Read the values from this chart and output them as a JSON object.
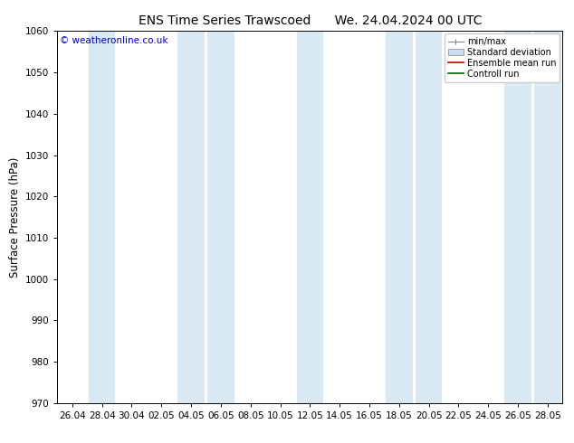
{
  "title": "ENS Time Series Trawscoed",
  "title2": "We. 24.04.2024 00 UTC",
  "ylabel": "Surface Pressure (hPa)",
  "ylim": [
    970,
    1060
  ],
  "yticks": [
    970,
    980,
    990,
    1000,
    1010,
    1020,
    1030,
    1040,
    1050,
    1060
  ],
  "x_labels": [
    "26.04",
    "28.04",
    "30.04",
    "02.05",
    "04.05",
    "06.05",
    "08.05",
    "10.05",
    "12.05",
    "14.05",
    "16.05",
    "18.05",
    "20.05",
    "22.05",
    "24.05",
    "26.05",
    "28.05"
  ],
  "band_color": "#daeaf5",
  "band_alpha": 1.0,
  "bg_color": "#ffffff",
  "legend_items": [
    {
      "label": "min/max",
      "color": "#aaaaaa",
      "type": "errorbar"
    },
    {
      "label": "Standard deviation",
      "color": "#c8ddf0",
      "type": "box"
    },
    {
      "label": "Ensemble mean run",
      "color": "#ff0000",
      "type": "line"
    },
    {
      "label": "Controll run",
      "color": "#008800",
      "type": "line"
    }
  ],
  "copyright_text": "© weatheronline.co.uk",
  "copyright_color": "#0000cc",
  "title_fontsize": 10,
  "tick_fontsize": 7.5,
  "ylabel_fontsize": 8.5,
  "band_indices": [
    1,
    4,
    5,
    8,
    11,
    12,
    15,
    16
  ]
}
